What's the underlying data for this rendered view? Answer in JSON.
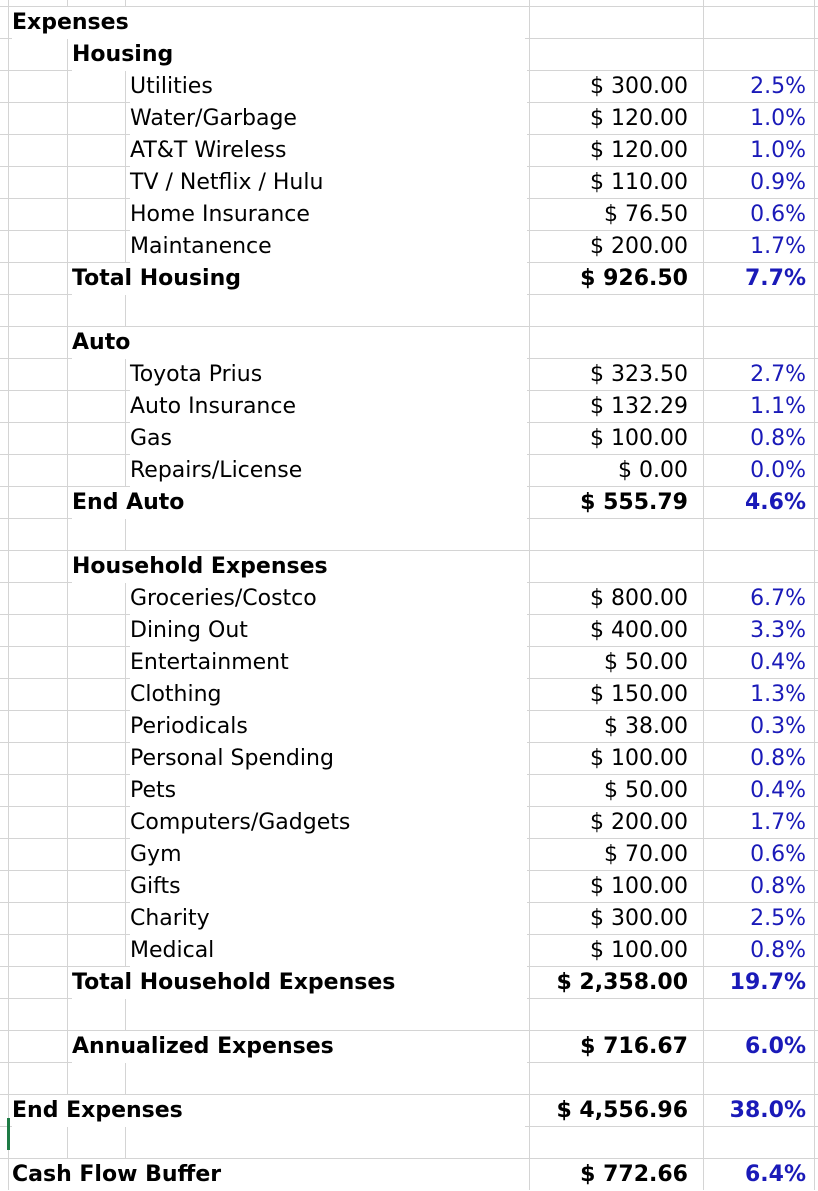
{
  "sheet": {
    "title": "Expenses",
    "sections": [
      {
        "key": "housing",
        "header": "Housing",
        "items": [
          {
            "label": "Utilities",
            "amount": "$ 300.00",
            "pct": "2.5%"
          },
          {
            "label": "Water/Garbage",
            "amount": "$ 120.00",
            "pct": "1.0%"
          },
          {
            "label": "AT&T Wireless",
            "amount": "$ 120.00",
            "pct": "1.0%"
          },
          {
            "label": "TV / Netflix / Hulu",
            "amount": "$ 110.00",
            "pct": "0.9%"
          },
          {
            "label": "Home Insurance",
            "amount": "$ 76.50",
            "pct": "0.6%"
          },
          {
            "label": "Maintanence",
            "amount": "$ 200.00",
            "pct": "1.7%"
          }
        ],
        "total": {
          "label": "Total Housing",
          "amount": "$ 926.50",
          "pct": "7.7%"
        }
      },
      {
        "key": "auto",
        "header": "Auto",
        "items": [
          {
            "label": "Toyota Prius",
            "amount": "$ 323.50",
            "pct": "2.7%"
          },
          {
            "label": "Auto Insurance",
            "amount": "$ 132.29",
            "pct": "1.1%"
          },
          {
            "label": "Gas",
            "amount": "$ 100.00",
            "pct": "0.8%"
          },
          {
            "label": "Repairs/License",
            "amount": "$ 0.00",
            "pct": "0.0%"
          }
        ],
        "total": {
          "label": "End Auto",
          "amount": "$ 555.79",
          "pct": "4.6%"
        }
      },
      {
        "key": "household",
        "header": "Household Expenses",
        "items": [
          {
            "label": "Groceries/Costco",
            "amount": "$ 800.00",
            "pct": "6.7%"
          },
          {
            "label": "Dining Out",
            "amount": "$ 400.00",
            "pct": "3.3%"
          },
          {
            "label": "Entertainment",
            "amount": "$ 50.00",
            "pct": "0.4%"
          },
          {
            "label": "Clothing",
            "amount": "$ 150.00",
            "pct": "1.3%"
          },
          {
            "label": "Periodicals",
            "amount": "$ 38.00",
            "pct": "0.3%"
          },
          {
            "label": "Personal Spending",
            "amount": "$ 100.00",
            "pct": "0.8%"
          },
          {
            "label": "Pets",
            "amount": "$ 50.00",
            "pct": "0.4%"
          },
          {
            "label": "Computers/Gadgets",
            "amount": "$ 200.00",
            "pct": "1.7%"
          },
          {
            "label": "Gym",
            "amount": "$ 70.00",
            "pct": "0.6%"
          },
          {
            "label": "Gifts",
            "amount": "$ 100.00",
            "pct": "0.8%"
          },
          {
            "label": "Charity",
            "amount": "$ 300.00",
            "pct": "2.5%"
          },
          {
            "label": "Medical",
            "amount": "$ 100.00",
            "pct": "0.8%"
          }
        ],
        "total": {
          "label": "Total Household Expenses",
          "amount": "$ 2,358.00",
          "pct": "19.7%"
        }
      }
    ],
    "annualized": {
      "label": "Annualized Expenses",
      "amount": "$ 716.67",
      "pct": "6.0%"
    },
    "end_expenses": {
      "label": "End Expenses",
      "amount": "$ 4,556.96",
      "pct": "38.0%"
    },
    "cash_flow": {
      "label": "Cash Flow Buffer",
      "amount": "$ 772.66",
      "pct": "6.4%"
    }
  },
  "colors": {
    "percent_text": "#1a1ab8",
    "gridline": "#d4d4d4",
    "selection": "#1e7b45"
  }
}
